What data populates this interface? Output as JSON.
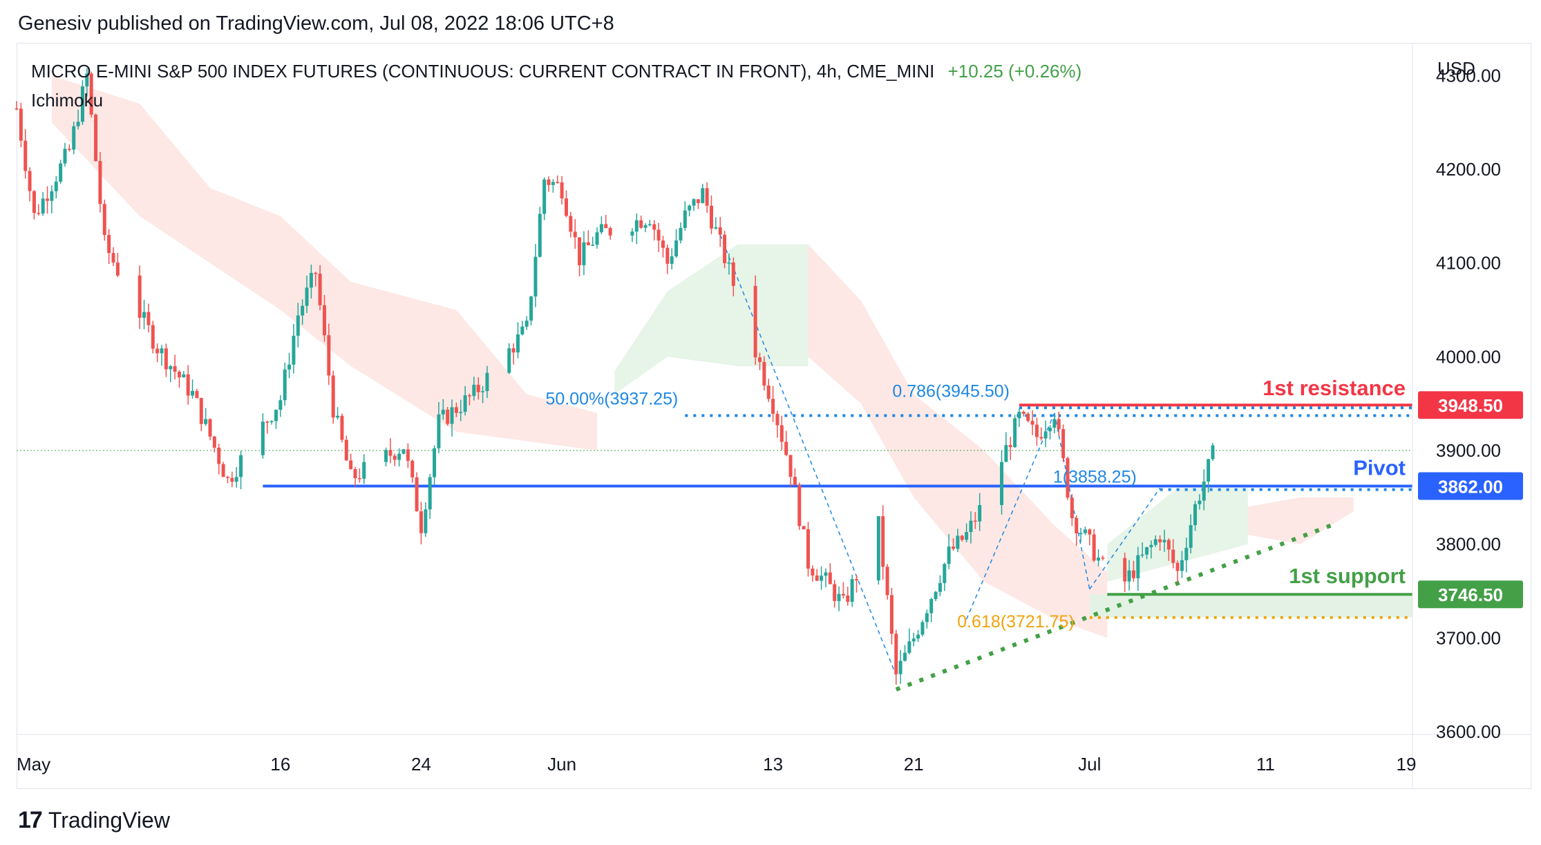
{
  "header": {
    "publisher_line": "Genesiv published on TradingView.com, Jul 08, 2022 18:06 UTC+8",
    "symbol": "MICRO E-MINI S&P 500 INDEX FUTURES (CONTINUOUS: CURRENT CONTRACT IN FRONT), 4h, CME_MINI",
    "change": "+10.25 (+0.26%)",
    "indicator": "Ichimoku"
  },
  "footer": {
    "logo_mark": "17",
    "logo_text": "TradingView"
  },
  "colors": {
    "up": "#26a69a",
    "down": "#ef5350",
    "resistance": "#f23645",
    "pivot": "#2962ff",
    "support": "#43a047",
    "fib": "#1e88e5",
    "fib_golden": "#f0a30a",
    "cloud_bear": "#fde4e1",
    "cloud_bull": "#e3f2e4"
  },
  "chart_data": {
    "type": "candlestick",
    "currency": "USD",
    "y_ticks": [
      "4300.00",
      "4200.00",
      "4100.00",
      "4000.00",
      "3900.00",
      "3800.00",
      "3700.00",
      "3600.00"
    ],
    "ylim": [
      3597,
      4335
    ],
    "x_ticks": [
      {
        "label": "May",
        "date": "2022-05-01"
      },
      {
        "label": "16",
        "date": "2022-05-16"
      },
      {
        "label": "24",
        "date": "2022-05-24"
      },
      {
        "label": "Jun",
        "date": "2022-06-01"
      },
      {
        "label": "13",
        "date": "2022-06-13"
      },
      {
        "label": "21",
        "date": "2022-06-21"
      },
      {
        "label": "Jul",
        "date": "2022-07-01"
      },
      {
        "label": "11",
        "date": "2022-07-11"
      },
      {
        "label": "19",
        "date": "2022-07-19"
      }
    ],
    "price_path": [
      [
        "2022-05-01",
        4265
      ],
      [
        "2022-05-02",
        4150
      ],
      [
        "2022-05-04",
        4220
      ],
      [
        "2022-05-05",
        4300
      ],
      [
        "2022-05-06",
        4120
      ],
      [
        "2022-05-09",
        4010
      ],
      [
        "2022-05-11",
        3960
      ],
      [
        "2022-05-12",
        3915
      ],
      [
        "2022-05-13",
        3868
      ],
      [
        "2022-05-16",
        3955
      ],
      [
        "2022-05-17",
        4045
      ],
      [
        "2022-05-18",
        4090
      ],
      [
        "2022-05-19",
        3945
      ],
      [
        "2022-05-20",
        3870
      ],
      [
        "2022-05-23",
        3905
      ],
      [
        "2022-05-24",
        3820
      ],
      [
        "2022-05-25",
        3930
      ],
      [
        "2022-05-26",
        3945
      ],
      [
        "2022-05-27",
        3960
      ],
      [
        "2022-05-30",
        4030
      ],
      [
        "2022-05-31",
        4190
      ],
      [
        "2022-06-01",
        4180
      ],
      [
        "2022-06-02",
        4105
      ],
      [
        "2022-06-03",
        4130
      ],
      [
        "2022-06-06",
        4150
      ],
      [
        "2022-06-07",
        4100
      ],
      [
        "2022-06-08",
        4150
      ],
      [
        "2022-06-09",
        4175
      ],
      [
        "2022-06-10",
        4120
      ],
      [
        "2022-06-13",
        3950
      ],
      [
        "2022-06-14",
        3880
      ],
      [
        "2022-06-15",
        3780
      ],
      [
        "2022-06-16",
        3760
      ],
      [
        "2022-06-17",
        3735
      ],
      [
        "2022-06-19",
        3820
      ],
      [
        "2022-06-20",
        3660
      ],
      [
        "2022-06-21",
        3700
      ],
      [
        "2022-06-22",
        3745
      ],
      [
        "2022-06-23",
        3790
      ],
      [
        "2022-06-24",
        3810
      ],
      [
        "2022-06-25",
        3845
      ],
      [
        "2022-06-27",
        3935
      ],
      [
        "2022-06-28",
        3915
      ],
      [
        "2022-06-29",
        3942
      ],
      [
        "2022-06-30",
        3830
      ],
      [
        "2022-07-01",
        3800
      ],
      [
        "2022-07-02",
        3768
      ],
      [
        "2022-07-03",
        3760
      ],
      [
        "2022-07-05",
        3810
      ],
      [
        "2022-07-06",
        3770
      ],
      [
        "2022-07-07",
        3840
      ],
      [
        "2022-07-08",
        3895
      ]
    ],
    "levels": [
      {
        "name": "1st resistance",
        "value": 3948.5,
        "label": "3948.50"
      },
      {
        "name": "Pivot",
        "value": 3862.0,
        "label": "3862.00"
      },
      {
        "name": "1st support",
        "value": 3746.5,
        "label": "3746.50"
      }
    ],
    "fib_annotations": [
      {
        "text": "50.00%(3937.25)",
        "value": 3937.25
      },
      {
        "text": "0.786(3945.50)",
        "value": 3945.5
      },
      {
        "text": "1(3858.25)",
        "value": 3858.25
      },
      {
        "text": "0.618(3721.75)",
        "value": 3721.75
      }
    ],
    "last_price_line": 3900,
    "trendline": [
      [
        "2022-06-20",
        3645
      ],
      [
        "2022-07-15",
        3822
      ]
    ]
  }
}
